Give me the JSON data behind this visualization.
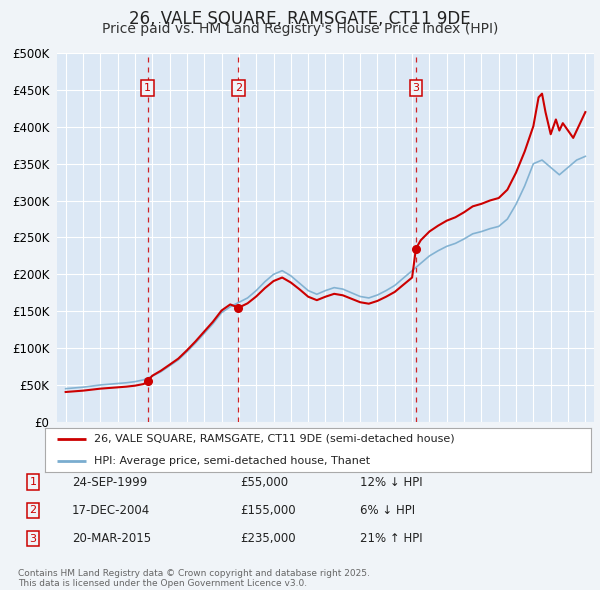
{
  "title": "26, VALE SQUARE, RAMSGATE, CT11 9DE",
  "subtitle": "Price paid vs. HM Land Registry's House Price Index (HPI)",
  "title_fontsize": 12,
  "subtitle_fontsize": 10,
  "bg_color": "#f0f4f8",
  "plot_bg_color": "#dce8f5",
  "grid_color": "#ffffff",
  "ylim": [
    0,
    500000
  ],
  "xlim_start": 1994.5,
  "xlim_end": 2025.5,
  "yticks": [
    0,
    50000,
    100000,
    150000,
    200000,
    250000,
    300000,
    350000,
    400000,
    450000,
    500000
  ],
  "ytick_labels": [
    "£0",
    "£50K",
    "£100K",
    "£150K",
    "£200K",
    "£250K",
    "£300K",
    "£350K",
    "£400K",
    "£450K",
    "£500K"
  ],
  "sale_dates": [
    1999.73,
    2004.96,
    2015.22
  ],
  "sale_prices": [
    55000,
    155000,
    235000
  ],
  "sale_labels": [
    "1",
    "2",
    "3"
  ],
  "red_line_color": "#cc0000",
  "blue_line_color": "#7aadcf",
  "vline_color": "#cc0000",
  "legend_label_red": "26, VALE SQUARE, RAMSGATE, CT11 9DE (semi-detached house)",
  "legend_label_blue": "HPI: Average price, semi-detached house, Thanet",
  "table_rows": [
    {
      "num": "1",
      "date": "24-SEP-1999",
      "price": "£55,000",
      "hpi": "12% ↓ HPI"
    },
    {
      "num": "2",
      "date": "17-DEC-2004",
      "price": "£155,000",
      "hpi": "6% ↓ HPI"
    },
    {
      "num": "3",
      "date": "20-MAR-2015",
      "price": "£235,000",
      "hpi": "21% ↑ HPI"
    }
  ],
  "footnote": "Contains HM Land Registry data © Crown copyright and database right 2025.\nThis data is licensed under the Open Government Licence v3.0.",
  "hpi_years": [
    1995,
    1995.5,
    1996,
    1996.5,
    1997,
    1997.5,
    1998,
    1998.5,
    1999,
    1999.5,
    2000,
    2000.5,
    2001,
    2001.5,
    2002,
    2002.5,
    2003,
    2003.5,
    2004,
    2004.5,
    2005,
    2005.5,
    2006,
    2006.5,
    2007,
    2007.5,
    2008,
    2008.5,
    2009,
    2009.5,
    2010,
    2010.5,
    2011,
    2011.5,
    2012,
    2012.5,
    2013,
    2013.5,
    2014,
    2014.5,
    2015,
    2015.5,
    2016,
    2016.5,
    2017,
    2017.5,
    2018,
    2018.5,
    2019,
    2019.5,
    2020,
    2020.5,
    2021,
    2021.5,
    2022,
    2022.5,
    2023,
    2023.5,
    2024,
    2024.5,
    2025
  ],
  "hpi_values": [
    45000,
    46000,
    47000,
    48500,
    50000,
    51000,
    52000,
    53000,
    54500,
    57000,
    62000,
    68000,
    76000,
    84000,
    95000,
    107000,
    120000,
    133000,
    148000,
    156000,
    162000,
    168000,
    178000,
    190000,
    200000,
    205000,
    198000,
    188000,
    178000,
    173000,
    178000,
    182000,
    180000,
    175000,
    170000,
    168000,
    172000,
    178000,
    185000,
    195000,
    205000,
    215000,
    225000,
    232000,
    238000,
    242000,
    248000,
    255000,
    258000,
    262000,
    265000,
    275000,
    295000,
    320000,
    350000,
    355000,
    345000,
    335000,
    345000,
    355000,
    360000
  ],
  "red_years_pre": [
    1995,
    1995.5,
    1996,
    1996.5,
    1997,
    1997.5,
    1998,
    1998.5,
    1999,
    1999.5,
    1999.73
  ],
  "red_values_pre": [
    40500,
    41400,
    42300,
    43650,
    45000,
    45900,
    46800,
    47700,
    49050,
    51300,
    55000
  ],
  "red_years_mid": [
    1999.73,
    2000,
    2000.5,
    2001,
    2001.5,
    2002,
    2002.5,
    2003,
    2003.5,
    2004,
    2004.5,
    2004.96
  ],
  "red_values_mid": [
    55000,
    62500,
    69400,
    77500,
    85700,
    97000,
    109200,
    122500,
    135700,
    151000,
    159200,
    155000
  ],
  "red_years_mid2": [
    2004.96,
    2005,
    2005.5,
    2006,
    2006.5,
    2007,
    2007.5,
    2008,
    2008.5,
    2009,
    2009.5,
    2010,
    2010.5,
    2011,
    2011.5,
    2012,
    2012.5,
    2013,
    2013.5,
    2014,
    2014.5,
    2015,
    2015.22
  ],
  "red_values_mid2": [
    155000,
    155000,
    160700,
    170000,
    181300,
    190900,
    195700,
    188900,
    179700,
    169700,
    165000,
    169700,
    173600,
    171600,
    166900,
    162200,
    160200,
    164000,
    169700,
    176200,
    186000,
    195700,
    235000
  ],
  "red_years_post": [
    2015.22,
    2015.5,
    2016,
    2016.5,
    2017,
    2017.5,
    2018,
    2018.5,
    2019,
    2019.5,
    2020,
    2020.5,
    2021,
    2021.5,
    2022,
    2022.3,
    2022.5,
    2022.7,
    2023,
    2023.3,
    2023.5,
    2023.7,
    2024,
    2024.3,
    2024.5,
    2025
  ],
  "red_values_post": [
    235000,
    246300,
    258100,
    266000,
    272800,
    277400,
    284200,
    292200,
    295600,
    300200,
    303500,
    314800,
    338000,
    366700,
    401000,
    440000,
    445000,
    420000,
    390000,
    410000,
    395000,
    405000,
    395000,
    385000,
    395000,
    420000
  ]
}
